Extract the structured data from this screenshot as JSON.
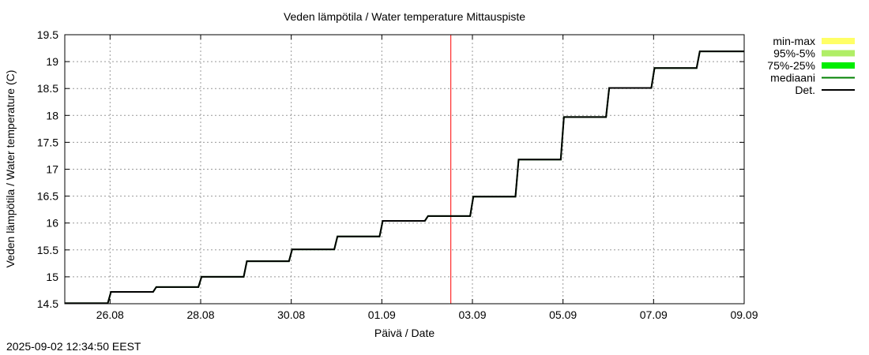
{
  "chart_data": {
    "type": "line",
    "title": "Veden lämpötila / Water temperature Mittauspiste",
    "xlabel": "Päivä / Date",
    "ylabel": "Veden lämpötila / Water temperature (C)",
    "ylim": [
      14.5,
      19.5
    ],
    "xlim": [
      "25.08 00:00",
      "09.09 00:00"
    ],
    "yticks": [
      "14.5",
      "15",
      "15.5",
      "16",
      "16.5",
      "17",
      "17.5",
      "18",
      "18.5",
      "19",
      "19.5"
    ],
    "xticks": [
      "26.08",
      "28.08",
      "30.08",
      "01.09",
      "03.09",
      "05.09",
      "07.09",
      "09.09"
    ],
    "grid": true,
    "legend_position": "right",
    "legend": [
      {
        "label": "min-max",
        "color": "#ffff66",
        "kind": "band"
      },
      {
        "label": "95%-5%",
        "color": "#b0ee66",
        "kind": "band"
      },
      {
        "label": "75%-25%",
        "color": "#00ee00",
        "kind": "band"
      },
      {
        "label": "mediaani",
        "color": "#008000",
        "kind": "line"
      },
      {
        "label": "Det.",
        "color": "#000000",
        "kind": "line"
      }
    ],
    "now_marker": {
      "date": "02.09 12:34",
      "color": "#ff0000"
    },
    "series": [
      {
        "name": "Det.",
        "color": "#000000",
        "x": [
          "25.08",
          "26.08",
          "27.08",
          "28.08",
          "29.08",
          "30.08",
          "31.08",
          "01.09",
          "02.09",
          "03.09",
          "04.09",
          "05.09",
          "06.09",
          "07.09",
          "08.09"
        ],
        "values": [
          14.51,
          14.72,
          14.81,
          15.0,
          15.29,
          15.51,
          15.75,
          16.04,
          16.13,
          16.49,
          17.18,
          17.97,
          18.51,
          18.88,
          19.19
        ]
      }
    ]
  },
  "footer": {
    "timestamp": "2025-09-02 12:34:50 EEST"
  }
}
